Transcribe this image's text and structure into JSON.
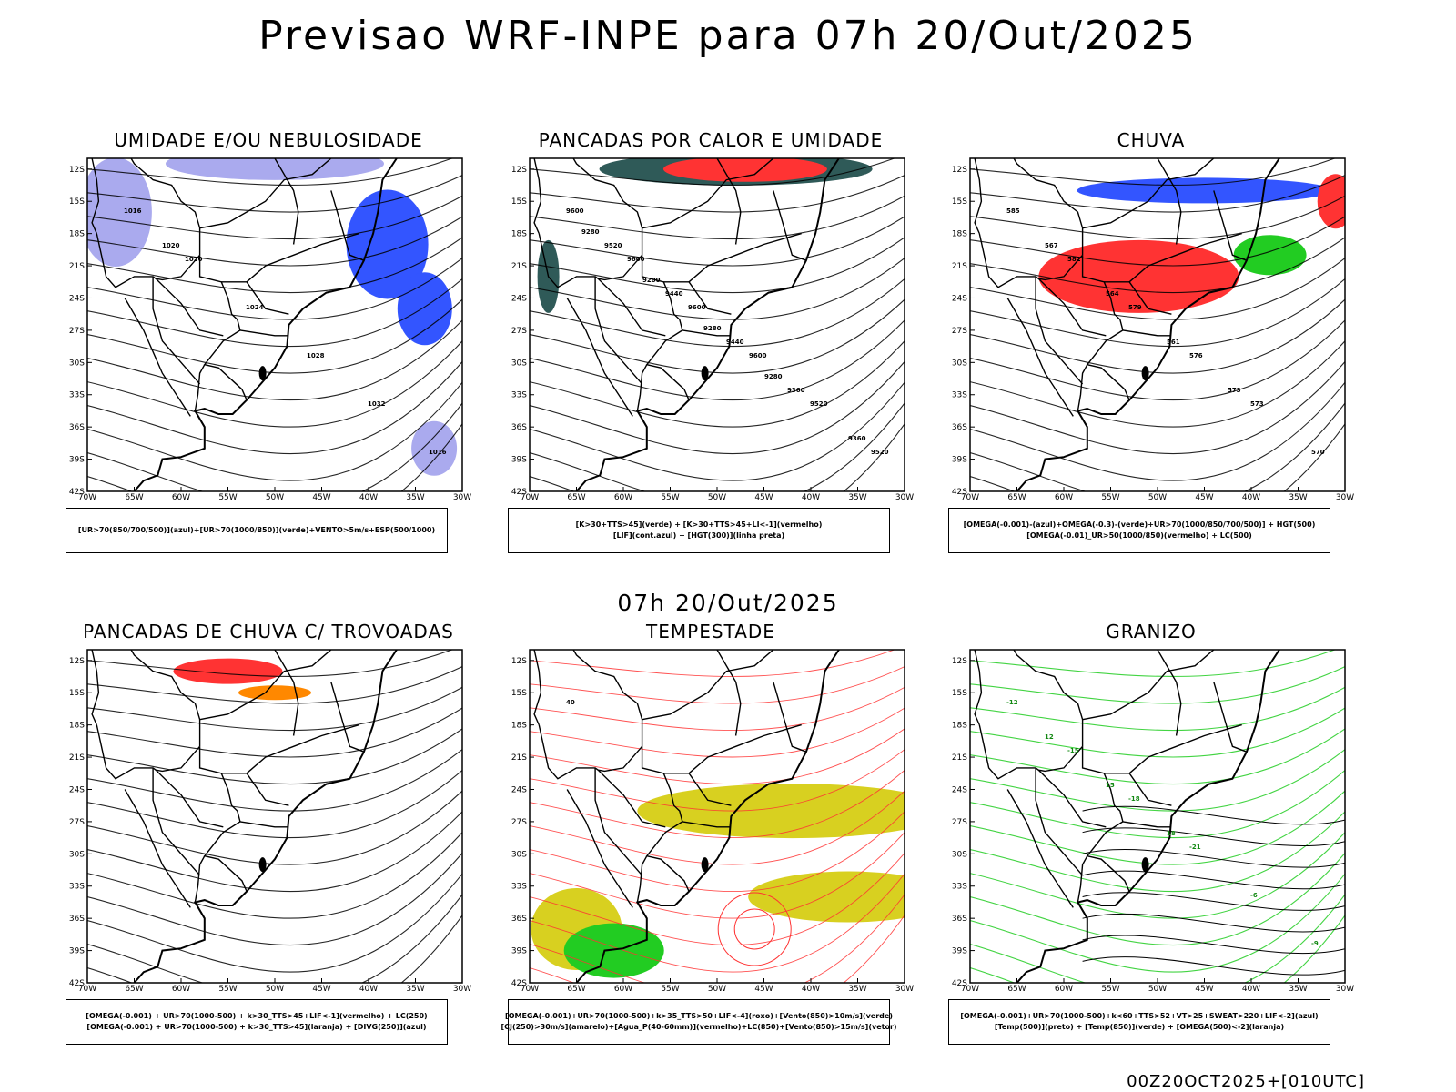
{
  "title": "Previsao WRF-INPE  para 07h 20/Out/2025",
  "row_date": "07h 20/Out/2025",
  "footer": "00Z20OCT2025+[010UTC]",
  "axes": {
    "lat_labels": [
      "12S",
      "15S",
      "18S",
      "21S",
      "24S",
      "27S",
      "30S",
      "33S",
      "36S",
      "39S",
      "42S"
    ],
    "lon_labels": [
      "70W",
      "65W",
      "60W",
      "55W",
      "50W",
      "45W",
      "40W",
      "35W",
      "30W"
    ]
  },
  "colors": {
    "blue": "#3355ff",
    "green": "#22cc22",
    "red": "#ff3333",
    "orange": "#ff8800",
    "yellow": "#d8d020",
    "lavender": "#aaaaee",
    "dark_teal": "#2f5a58",
    "black": "#000000"
  },
  "panels": [
    {
      "title": "UMIDADE E/OU NEBULOSIDADE",
      "legend": [
        "[UR>70(850/700/500)](azul)+[UR>70(1000/850)](verde)+VENTO>5m/s+ESP(500/1000)"
      ],
      "contour_labels": [
        "1016",
        "1020",
        "1024",
        "1028",
        "1032",
        "1016",
        "1020"
      ]
    },
    {
      "title": "PANCADAS POR CALOR E UMIDADE",
      "legend": [
        "[K>30+TTS>45](verde) + [K>30+TTS>45+LI<-1](vermelho)",
        "[LIF](cont.azul) + [HGT(300)](linha preta)"
      ],
      "contour_labels": [
        "9600",
        "9600",
        "9600",
        "9600",
        "9520",
        "9520",
        "9520",
        "9440",
        "9440",
        "9360",
        "9360",
        "9280",
        "9200",
        "9280",
        "9280"
      ]
    },
    {
      "title": "CHUVA",
      "legend": [
        "[OMEGA(-0.001)-(azul)+OMEGA(-0.3)-(verde)+UR>70(1000/850/700/500)] + HGT(500)",
        "[OMEGA(-0.01)_UR>50(1000/850)(vermelho) + LC(500)"
      ],
      "contour_labels": [
        "585",
        "582",
        "579",
        "576",
        "573",
        "570",
        "567",
        "564",
        "561",
        "573"
      ]
    },
    {
      "title": "PANCADAS DE CHUVA C/ TROVOADAS",
      "legend": [
        "[OMEGA(-0.001) + UR>70(1000-500) + k>30_TTS>45+LIF<-1](vermelho) + LC(250)",
        "[OMEGA(-0.001) + UR>70(1000-500) + k>30_TTS>45](laranja) + [DIVG(250)](azul)"
      ],
      "contour_labels": []
    },
    {
      "title": "TEMPESTADE",
      "legend": [
        "[OMEGA(-0.001)+UR>70(1000-500)+k>35_TTS>50+LIF<-4](roxo)+[Vento(850)>10m/s](verde)",
        "[CJ(250)>30m/s](amarelo)+[Agua_P(40-60mm)](vermelho)+LC(850)+[Vento(850)>15m/s](vetor)"
      ],
      "contour_labels": [
        "40"
      ]
    },
    {
      "title": "GRANIZO",
      "legend": [
        "[OMEGA(-0.001)+UR>70(1000-500)+k<60+TTS>52+VT>25+SWEAT>220+LIF<-2](azul)",
        "[Temp(500)](preto) + [Temp(850)](verde) + [OMEGA(500)<-2](laranja)"
      ],
      "contour_labels": [
        "-12",
        "-15",
        "-18",
        "-21",
        "-6",
        "-9",
        "12",
        "15",
        "18"
      ]
    }
  ]
}
